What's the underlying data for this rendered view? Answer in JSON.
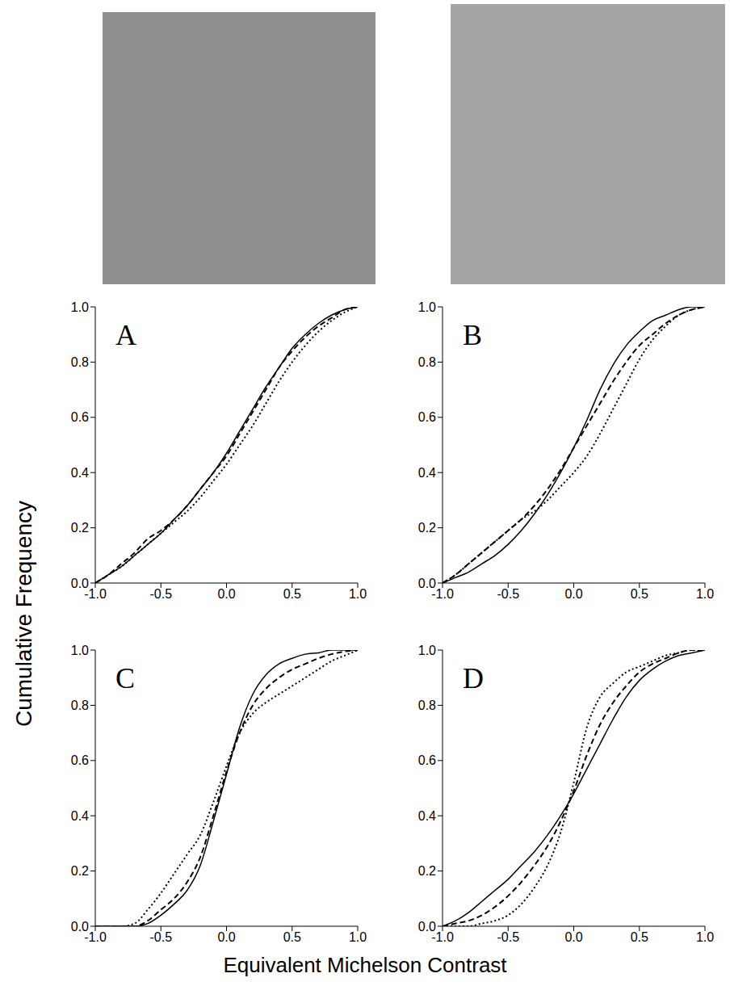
{
  "figure": {
    "ylabel": "Cumulative Frequency",
    "xlabel": "Equivalent Michelson Contrast"
  },
  "chart_data": [
    {
      "type": "line",
      "title": "A",
      "x": [
        -1.0,
        -0.9,
        -0.8,
        -0.7,
        -0.6,
        -0.5,
        -0.4,
        -0.3,
        -0.2,
        -0.1,
        0.0,
        0.1,
        0.2,
        0.3,
        0.4,
        0.5,
        0.6,
        0.7,
        0.8,
        0.9,
        1.0
      ],
      "series": [
        {
          "line_style": "solid",
          "color": "#000000",
          "values": [
            0,
            0.03,
            0.06,
            0.1,
            0.14,
            0.18,
            0.23,
            0.28,
            0.34,
            0.4,
            0.47,
            0.55,
            0.63,
            0.71,
            0.78,
            0.85,
            0.9,
            0.94,
            0.97,
            0.99,
            1.0
          ]
        },
        {
          "line_style": "dashed",
          "color": "#000000",
          "values": [
            0,
            0.03,
            0.07,
            0.11,
            0.16,
            0.19,
            0.23,
            0.28,
            0.34,
            0.4,
            0.46,
            0.54,
            0.62,
            0.7,
            0.78,
            0.84,
            0.89,
            0.93,
            0.96,
            0.99,
            1.0
          ]
        },
        {
          "line_style": "dotted",
          "color": "#000000",
          "values": [
            0,
            0.03,
            0.06,
            0.1,
            0.14,
            0.18,
            0.22,
            0.26,
            0.31,
            0.37,
            0.43,
            0.5,
            0.57,
            0.65,
            0.73,
            0.8,
            0.86,
            0.91,
            0.95,
            0.98,
            1.0
          ]
        }
      ],
      "xlim": [
        -1,
        1
      ],
      "xticks": [
        {
          "value": -1,
          "label": "-1.0"
        },
        -0.5,
        {
          "value": 0,
          "label": "0.0"
        },
        0.5,
        {
          "value": 1,
          "label": "1.0"
        }
      ],
      "ylim": [
        0,
        1
      ],
      "yticks": [
        {
          "value": 0,
          "label": "0.0"
        },
        0.2,
        0.4,
        0.6,
        0.8,
        {
          "value": 1,
          "label": "1.0"
        }
      ]
    },
    {
      "type": "line",
      "title": "B",
      "x": [
        -1.0,
        -0.9,
        -0.8,
        -0.7,
        -0.6,
        -0.5,
        -0.4,
        -0.3,
        -0.2,
        -0.1,
        0.0,
        0.1,
        0.2,
        0.3,
        0.4,
        0.5,
        0.6,
        0.7,
        0.8,
        0.9,
        1.0
      ],
      "series": [
        {
          "line_style": "solid",
          "color": "#000000",
          "values": [
            0,
            0.02,
            0.04,
            0.07,
            0.1,
            0.14,
            0.19,
            0.25,
            0.32,
            0.4,
            0.49,
            0.59,
            0.7,
            0.79,
            0.86,
            0.91,
            0.95,
            0.97,
            0.99,
            1.0,
            1.0
          ]
        },
        {
          "line_style": "dashed",
          "color": "#000000",
          "values": [
            0,
            0.03,
            0.07,
            0.11,
            0.15,
            0.19,
            0.23,
            0.28,
            0.34,
            0.41,
            0.49,
            0.57,
            0.65,
            0.73,
            0.8,
            0.86,
            0.9,
            0.94,
            0.97,
            0.99,
            1.0
          ]
        },
        {
          "line_style": "dotted",
          "color": "#000000",
          "values": [
            0,
            0.03,
            0.07,
            0.11,
            0.15,
            0.19,
            0.23,
            0.26,
            0.3,
            0.35,
            0.4,
            0.46,
            0.54,
            0.63,
            0.72,
            0.81,
            0.88,
            0.93,
            0.97,
            0.99,
            1.0
          ]
        }
      ],
      "xlim": [
        -1,
        1
      ],
      "xticks": [
        {
          "value": -1,
          "label": "-1.0"
        },
        -0.5,
        {
          "value": 0,
          "label": "0.0"
        },
        0.5,
        {
          "value": 1,
          "label": "1.0"
        }
      ],
      "ylim": [
        0,
        1
      ],
      "yticks": [
        {
          "value": 0,
          "label": "0.0"
        },
        0.2,
        0.4,
        0.6,
        0.8,
        {
          "value": 1,
          "label": "1.0"
        }
      ]
    },
    {
      "type": "line",
      "title": "C",
      "x": [
        -1.0,
        -0.9,
        -0.8,
        -0.7,
        -0.6,
        -0.5,
        -0.4,
        -0.3,
        -0.2,
        -0.1,
        0.0,
        0.1,
        0.2,
        0.3,
        0.4,
        0.5,
        0.6,
        0.7,
        0.8,
        0.9,
        1.0
      ],
      "series": [
        {
          "line_style": "solid",
          "color": "#000000",
          "values": [
            0,
            0,
            0,
            0,
            0.01,
            0.04,
            0.08,
            0.13,
            0.22,
            0.38,
            0.55,
            0.72,
            0.84,
            0.91,
            0.95,
            0.97,
            0.985,
            0.99,
            1.0,
            1.0,
            1.0
          ]
        },
        {
          "line_style": "dashed",
          "color": "#000000",
          "values": [
            0,
            0,
            0,
            0,
            0.02,
            0.06,
            0.1,
            0.16,
            0.25,
            0.4,
            0.56,
            0.7,
            0.8,
            0.86,
            0.9,
            0.93,
            0.95,
            0.97,
            0.985,
            0.995,
            1.0
          ]
        },
        {
          "line_style": "dotted",
          "color": "#000000",
          "values": [
            0,
            0,
            0,
            0.01,
            0.06,
            0.12,
            0.19,
            0.26,
            0.33,
            0.45,
            0.58,
            0.7,
            0.77,
            0.81,
            0.84,
            0.87,
            0.9,
            0.93,
            0.96,
            0.98,
            1.0
          ]
        }
      ],
      "xlim": [
        -1,
        1
      ],
      "xticks": [
        {
          "value": -1,
          "label": "-1.0"
        },
        -0.5,
        {
          "value": 0,
          "label": "0.0"
        },
        0.5,
        {
          "value": 1,
          "label": "1.0"
        }
      ],
      "ylim": [
        0,
        1
      ],
      "yticks": [
        {
          "value": 0,
          "label": "0.0"
        },
        0.2,
        0.4,
        0.6,
        0.8,
        {
          "value": 1,
          "label": "1.0"
        }
      ]
    },
    {
      "type": "line",
      "title": "D",
      "x": [
        -1.0,
        -0.9,
        -0.8,
        -0.7,
        -0.6,
        -0.5,
        -0.4,
        -0.3,
        -0.2,
        -0.1,
        0.0,
        0.1,
        0.2,
        0.3,
        0.4,
        0.5,
        0.6,
        0.7,
        0.8,
        0.9,
        1.0
      ],
      "series": [
        {
          "line_style": "solid",
          "color": "#000000",
          "values": [
            0,
            0.02,
            0.05,
            0.09,
            0.13,
            0.17,
            0.22,
            0.27,
            0.33,
            0.4,
            0.48,
            0.57,
            0.66,
            0.75,
            0.83,
            0.89,
            0.93,
            0.96,
            0.98,
            0.99,
            1.0
          ]
        },
        {
          "line_style": "dashed",
          "color": "#000000",
          "values": [
            0,
            0.01,
            0.02,
            0.04,
            0.07,
            0.11,
            0.16,
            0.22,
            0.29,
            0.38,
            0.49,
            0.62,
            0.73,
            0.81,
            0.87,
            0.92,
            0.95,
            0.97,
            0.99,
            1.0,
            1.0
          ]
        },
        {
          "line_style": "dotted",
          "color": "#000000",
          "values": [
            0,
            0,
            0,
            0.01,
            0.02,
            0.04,
            0.08,
            0.14,
            0.22,
            0.34,
            0.52,
            0.72,
            0.83,
            0.88,
            0.92,
            0.94,
            0.96,
            0.98,
            0.99,
            1.0,
            1.0
          ]
        }
      ],
      "xlim": [
        -1,
        1
      ],
      "xticks": [
        {
          "value": -1,
          "label": "-1.0"
        },
        -0.5,
        {
          "value": 0,
          "label": "0.0"
        },
        0.5,
        {
          "value": 1,
          "label": "1.0"
        }
      ],
      "ylim": [
        0,
        1
      ],
      "yticks": [
        {
          "value": 0,
          "label": "0.0"
        },
        0.2,
        0.4,
        0.6,
        0.8,
        {
          "value": 1,
          "label": "1.0"
        }
      ]
    }
  ]
}
